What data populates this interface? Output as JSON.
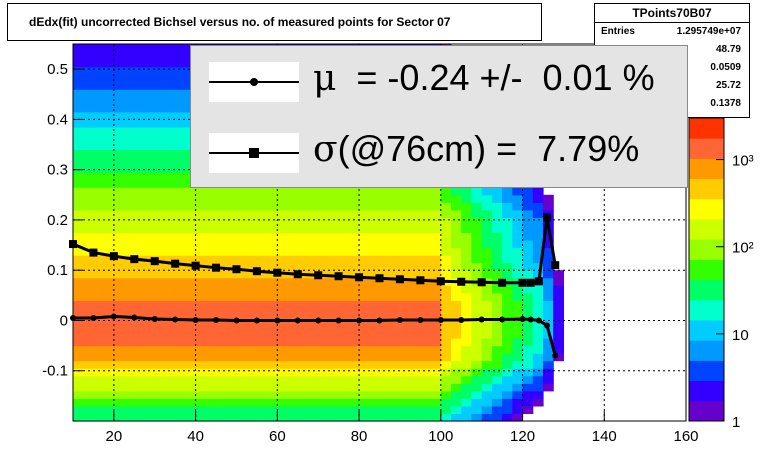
{
  "title": "dEdx(fit) uncorrected Bichsel versus no. of measured points for Sector 07",
  "stats": {
    "name": "TPoints70B07",
    "rows": [
      {
        "label": "Entries",
        "value": "1.295749e+07"
      },
      {
        "label": "",
        "value": "48.79"
      },
      {
        "label": "",
        "value": "0.0509"
      },
      {
        "label": "",
        "value": "25.72"
      },
      {
        "label": "",
        "value": "0.1378"
      }
    ]
  },
  "legend": [
    {
      "symbol": "μ",
      "text": "  = -0.24 +/-  0.01 %",
      "marker": "circle"
    },
    {
      "symbol": "σ",
      "text": "(@76cm) =  7.79%",
      "marker": "square"
    }
  ],
  "chart_data": {
    "type": "heatmap",
    "title": "dEdx(fit) uncorrected Bichsel versus no. of measured points for Sector 07",
    "xlim": [
      10,
      160
    ],
    "ylim": [
      -0.2,
      0.55
    ],
    "x_ticks": [
      20,
      40,
      60,
      80,
      100,
      120,
      140,
      160
    ],
    "y_ticks": [
      -0.1,
      0,
      0.1,
      0.2,
      0.3,
      0.4,
      0.5
    ],
    "y_tick_labels": [
      "-0.1",
      "0",
      "0.1",
      "0.2",
      "0.3",
      "0.4",
      "0.5"
    ],
    "grid": true,
    "colorbar": {
      "scale": "log",
      "range": [
        1,
        3000
      ],
      "tick_labels": [
        "1",
        "10",
        "10²",
        "10³"
      ],
      "tick_values": [
        1,
        10,
        100,
        1000
      ]
    },
    "palette": [
      "#6600cc",
      "#3300ff",
      "#0044ff",
      "#0099ff",
      "#00ccff",
      "#00ffcc",
      "#00ff66",
      "#33ff00",
      "#99ff00",
      "#ccff00",
      "#ffff00",
      "#ffcc00",
      "#ff9900",
      "#ff6633",
      "#ff3300"
    ],
    "series": [
      {
        "name": "μ",
        "marker": "circle",
        "x": [
          10,
          15,
          20,
          25,
          30,
          35,
          40,
          45,
          50,
          55,
          60,
          65,
          70,
          75,
          80,
          85,
          90,
          95,
          100,
          105,
          110,
          115,
          120,
          122,
          124,
          126,
          128
        ],
        "y": [
          0.005,
          0.005,
          0.008,
          0.006,
          0.003,
          0.002,
          0.001,
          0.001,
          0.0,
          0.0,
          0.0,
          0.0,
          0.0,
          0.0,
          0.0,
          0.0,
          0.001,
          0.001,
          0.001,
          0.001,
          0.002,
          0.002,
          0.003,
          0.002,
          0.0,
          -0.01,
          -0.07
        ]
      },
      {
        "name": "σ",
        "marker": "square",
        "x": [
          10,
          15,
          20,
          25,
          30,
          35,
          40,
          45,
          50,
          55,
          60,
          65,
          70,
          75,
          80,
          85,
          90,
          95,
          100,
          105,
          110,
          115,
          120,
          122,
          124,
          126,
          128
        ],
        "y": [
          0.152,
          0.135,
          0.128,
          0.122,
          0.118,
          0.113,
          0.109,
          0.105,
          0.102,
          0.098,
          0.095,
          0.092,
          0.09,
          0.088,
          0.086,
          0.084,
          0.082,
          0.08,
          0.078,
          0.077,
          0.076,
          0.075,
          0.075,
          0.075,
          0.078,
          0.205,
          0.11
        ]
      }
    ]
  }
}
